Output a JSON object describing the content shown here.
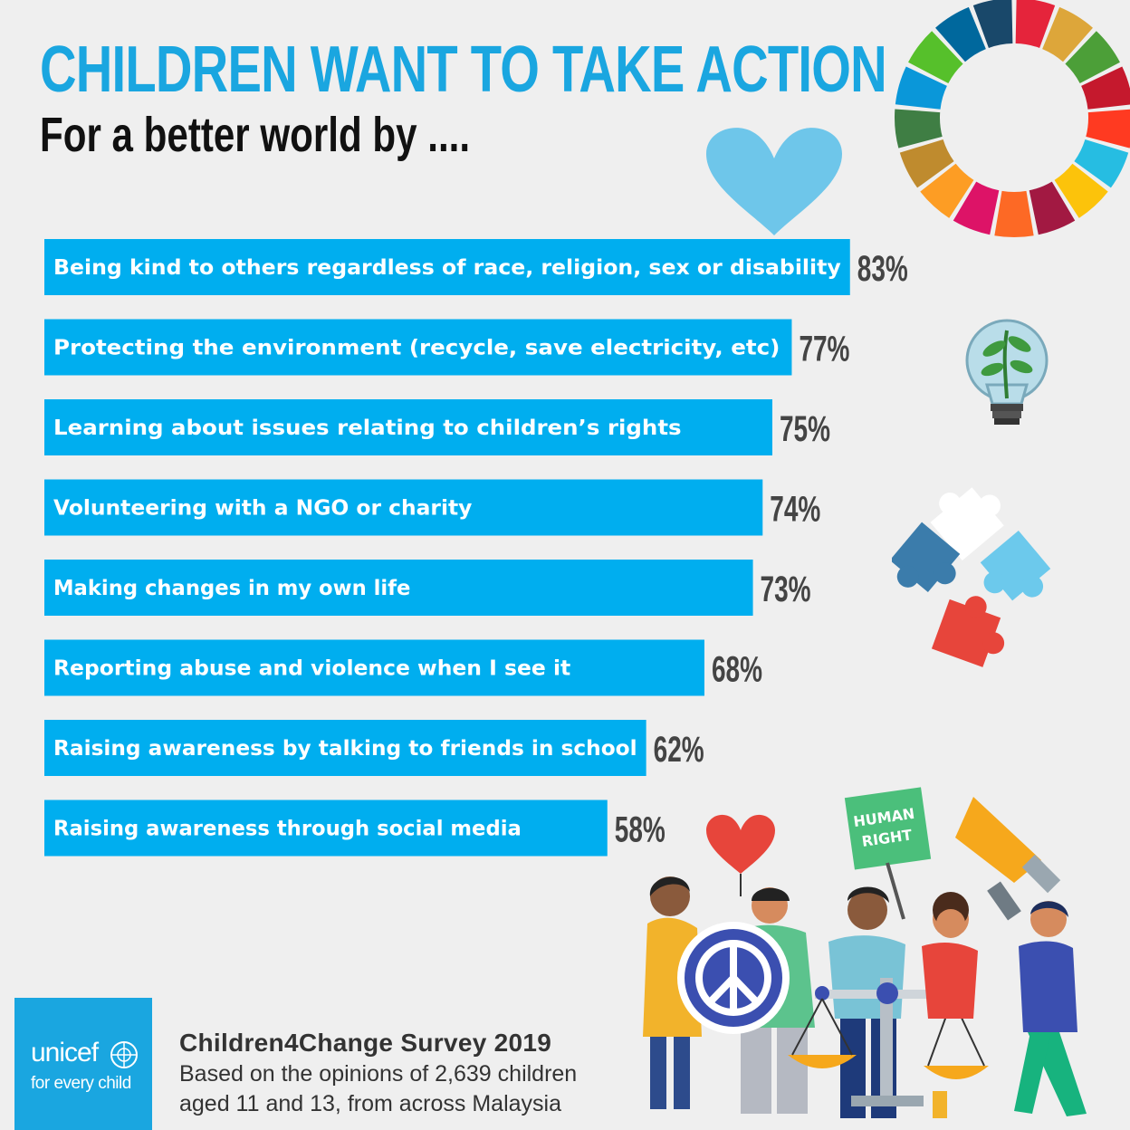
{
  "header": {
    "title": "CHILDREN WANT TO TAKE ACTION",
    "subtitle": "For a better world by ...."
  },
  "chart_data": {
    "type": "bar",
    "orientation": "horizontal",
    "categories": [
      "Being kind to others regardless of race, religion, sex or disability",
      "Protecting the environment (recycle, save electricity, etc)",
      "Learning about issues relating to children’s rights",
      "Volunteering with a NGO or charity",
      "Making changes in my own life",
      "Reporting abuse and violence when I see it",
      "Raising awareness by talking to friends in school",
      "Raising awareness through social media"
    ],
    "values": [
      83,
      77,
      75,
      74,
      73,
      68,
      62,
      58
    ],
    "value_labels": [
      "83%",
      "77%",
      "75%",
      "74%",
      "73%",
      "68%",
      "62%",
      "58%"
    ],
    "bar_color": "#00aeef",
    "grid": false
  },
  "poster": {
    "sign_line1": "HUMAN",
    "sign_line2": "RIGHT"
  },
  "footer": {
    "logo_word": "unicef",
    "logo_tagline": "for every child",
    "survey_title": "Children4Change Survey 2019",
    "survey_line1": "Based on the opinions of 2,639 children",
    "survey_line2": "aged 11 and 13, from across Malaysia"
  }
}
